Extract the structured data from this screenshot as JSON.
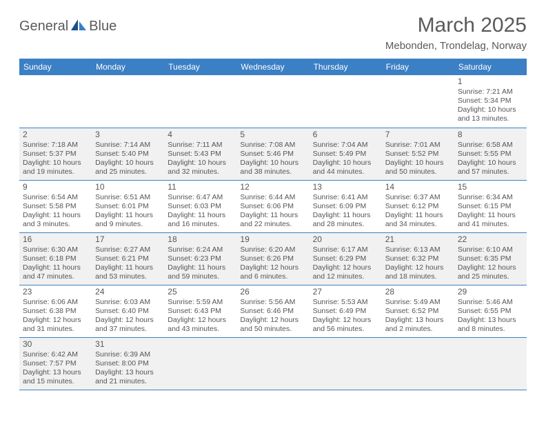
{
  "logo": {
    "part1": "General",
    "part2": "Blue"
  },
  "title": "March 2025",
  "location": "Mebonden, Trondelag, Norway",
  "colors": {
    "header_bg": "#3b7fc4",
    "header_fg": "#ffffff",
    "alt_row": "#f1f1f1",
    "text": "#555555"
  },
  "days_of_week": [
    "Sunday",
    "Monday",
    "Tuesday",
    "Wednesday",
    "Thursday",
    "Friday",
    "Saturday"
  ],
  "weeks": [
    [
      null,
      null,
      null,
      null,
      null,
      null,
      {
        "n": "1",
        "sr": "Sunrise: 7:21 AM",
        "ss": "Sunset: 5:34 PM",
        "dl1": "Daylight: 10 hours",
        "dl2": "and 13 minutes."
      }
    ],
    [
      {
        "n": "2",
        "sr": "Sunrise: 7:18 AM",
        "ss": "Sunset: 5:37 PM",
        "dl1": "Daylight: 10 hours",
        "dl2": "and 19 minutes."
      },
      {
        "n": "3",
        "sr": "Sunrise: 7:14 AM",
        "ss": "Sunset: 5:40 PM",
        "dl1": "Daylight: 10 hours",
        "dl2": "and 25 minutes."
      },
      {
        "n": "4",
        "sr": "Sunrise: 7:11 AM",
        "ss": "Sunset: 5:43 PM",
        "dl1": "Daylight: 10 hours",
        "dl2": "and 32 minutes."
      },
      {
        "n": "5",
        "sr": "Sunrise: 7:08 AM",
        "ss": "Sunset: 5:46 PM",
        "dl1": "Daylight: 10 hours",
        "dl2": "and 38 minutes."
      },
      {
        "n": "6",
        "sr": "Sunrise: 7:04 AM",
        "ss": "Sunset: 5:49 PM",
        "dl1": "Daylight: 10 hours",
        "dl2": "and 44 minutes."
      },
      {
        "n": "7",
        "sr": "Sunrise: 7:01 AM",
        "ss": "Sunset: 5:52 PM",
        "dl1": "Daylight: 10 hours",
        "dl2": "and 50 minutes."
      },
      {
        "n": "8",
        "sr": "Sunrise: 6:58 AM",
        "ss": "Sunset: 5:55 PM",
        "dl1": "Daylight: 10 hours",
        "dl2": "and 57 minutes."
      }
    ],
    [
      {
        "n": "9",
        "sr": "Sunrise: 6:54 AM",
        "ss": "Sunset: 5:58 PM",
        "dl1": "Daylight: 11 hours",
        "dl2": "and 3 minutes."
      },
      {
        "n": "10",
        "sr": "Sunrise: 6:51 AM",
        "ss": "Sunset: 6:01 PM",
        "dl1": "Daylight: 11 hours",
        "dl2": "and 9 minutes."
      },
      {
        "n": "11",
        "sr": "Sunrise: 6:47 AM",
        "ss": "Sunset: 6:03 PM",
        "dl1": "Daylight: 11 hours",
        "dl2": "and 16 minutes."
      },
      {
        "n": "12",
        "sr": "Sunrise: 6:44 AM",
        "ss": "Sunset: 6:06 PM",
        "dl1": "Daylight: 11 hours",
        "dl2": "and 22 minutes."
      },
      {
        "n": "13",
        "sr": "Sunrise: 6:41 AM",
        "ss": "Sunset: 6:09 PM",
        "dl1": "Daylight: 11 hours",
        "dl2": "and 28 minutes."
      },
      {
        "n": "14",
        "sr": "Sunrise: 6:37 AM",
        "ss": "Sunset: 6:12 PM",
        "dl1": "Daylight: 11 hours",
        "dl2": "and 34 minutes."
      },
      {
        "n": "15",
        "sr": "Sunrise: 6:34 AM",
        "ss": "Sunset: 6:15 PM",
        "dl1": "Daylight: 11 hours",
        "dl2": "and 41 minutes."
      }
    ],
    [
      {
        "n": "16",
        "sr": "Sunrise: 6:30 AM",
        "ss": "Sunset: 6:18 PM",
        "dl1": "Daylight: 11 hours",
        "dl2": "and 47 minutes."
      },
      {
        "n": "17",
        "sr": "Sunrise: 6:27 AM",
        "ss": "Sunset: 6:21 PM",
        "dl1": "Daylight: 11 hours",
        "dl2": "and 53 minutes."
      },
      {
        "n": "18",
        "sr": "Sunrise: 6:24 AM",
        "ss": "Sunset: 6:23 PM",
        "dl1": "Daylight: 11 hours",
        "dl2": "and 59 minutes."
      },
      {
        "n": "19",
        "sr": "Sunrise: 6:20 AM",
        "ss": "Sunset: 6:26 PM",
        "dl1": "Daylight: 12 hours",
        "dl2": "and 6 minutes."
      },
      {
        "n": "20",
        "sr": "Sunrise: 6:17 AM",
        "ss": "Sunset: 6:29 PM",
        "dl1": "Daylight: 12 hours",
        "dl2": "and 12 minutes."
      },
      {
        "n": "21",
        "sr": "Sunrise: 6:13 AM",
        "ss": "Sunset: 6:32 PM",
        "dl1": "Daylight: 12 hours",
        "dl2": "and 18 minutes."
      },
      {
        "n": "22",
        "sr": "Sunrise: 6:10 AM",
        "ss": "Sunset: 6:35 PM",
        "dl1": "Daylight: 12 hours",
        "dl2": "and 25 minutes."
      }
    ],
    [
      {
        "n": "23",
        "sr": "Sunrise: 6:06 AM",
        "ss": "Sunset: 6:38 PM",
        "dl1": "Daylight: 12 hours",
        "dl2": "and 31 minutes."
      },
      {
        "n": "24",
        "sr": "Sunrise: 6:03 AM",
        "ss": "Sunset: 6:40 PM",
        "dl1": "Daylight: 12 hours",
        "dl2": "and 37 minutes."
      },
      {
        "n": "25",
        "sr": "Sunrise: 5:59 AM",
        "ss": "Sunset: 6:43 PM",
        "dl1": "Daylight: 12 hours",
        "dl2": "and 43 minutes."
      },
      {
        "n": "26",
        "sr": "Sunrise: 5:56 AM",
        "ss": "Sunset: 6:46 PM",
        "dl1": "Daylight: 12 hours",
        "dl2": "and 50 minutes."
      },
      {
        "n": "27",
        "sr": "Sunrise: 5:53 AM",
        "ss": "Sunset: 6:49 PM",
        "dl1": "Daylight: 12 hours",
        "dl2": "and 56 minutes."
      },
      {
        "n": "28",
        "sr": "Sunrise: 5:49 AM",
        "ss": "Sunset: 6:52 PM",
        "dl1": "Daylight: 13 hours",
        "dl2": "and 2 minutes."
      },
      {
        "n": "29",
        "sr": "Sunrise: 5:46 AM",
        "ss": "Sunset: 6:55 PM",
        "dl1": "Daylight: 13 hours",
        "dl2": "and 8 minutes."
      }
    ],
    [
      {
        "n": "30",
        "sr": "Sunrise: 6:42 AM",
        "ss": "Sunset: 7:57 PM",
        "dl1": "Daylight: 13 hours",
        "dl2": "and 15 minutes."
      },
      {
        "n": "31",
        "sr": "Sunrise: 6:39 AM",
        "ss": "Sunset: 8:00 PM",
        "dl1": "Daylight: 13 hours",
        "dl2": "and 21 minutes."
      },
      null,
      null,
      null,
      null,
      null
    ]
  ]
}
